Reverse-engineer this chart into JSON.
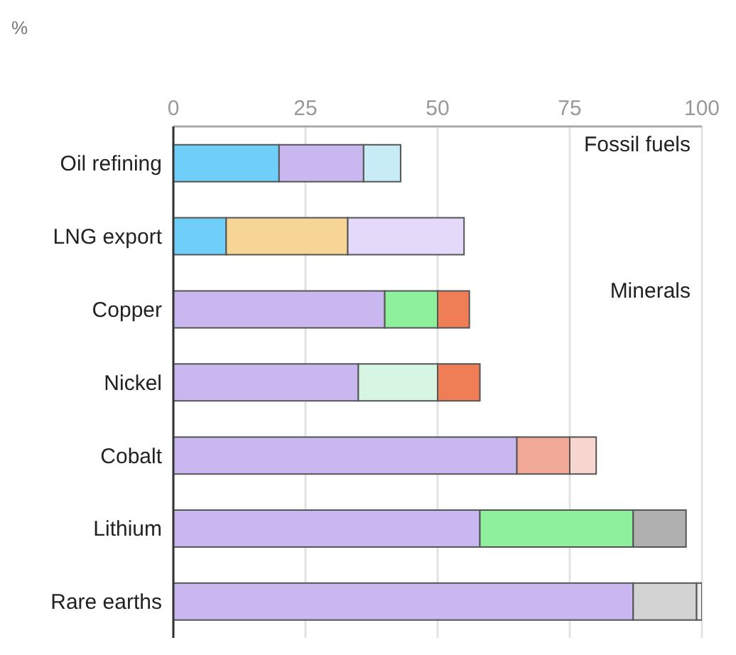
{
  "chart_data": {
    "type": "bar",
    "orientation": "horizontal",
    "stacked": true,
    "categories": [
      "Oil refining",
      "LNG export",
      "Copper",
      "Nickel",
      "Cobalt",
      "Lithium",
      "Rare earths"
    ],
    "series": [
      {
        "values": [
          20,
          10,
          40,
          35,
          65,
          58,
          87
        ],
        "colors": [
          "#6fcff9",
          "#6fcff9",
          "#c9b8ef",
          "#c9b8ef",
          "#c9b8ef",
          "#c9b8ef",
          "#c9b8ef"
        ]
      },
      {
        "values": [
          16,
          23,
          10,
          15,
          10,
          29,
          12
        ],
        "colors": [
          "#c9b8ef",
          "#f7d596",
          "#8ef09a",
          "#d6f5e3",
          "#f2a896",
          "#8ef09a",
          "#d3d3d3"
        ]
      },
      {
        "values": [
          7,
          22,
          6,
          8,
          5,
          10,
          1
        ],
        "colors": [
          "#c8ecf5",
          "#e4d9f8",
          "#ef7d56",
          "#ef7d56",
          "#f8d6cf",
          "#b0b0b0",
          "#ececec"
        ]
      }
    ],
    "xlim": [
      0,
      100
    ],
    "xticks": [
      0,
      25,
      50,
      75,
      100
    ],
    "grid": "x",
    "annotations": [
      "%",
      "Fossil fuels",
      "Minerals"
    ]
  }
}
